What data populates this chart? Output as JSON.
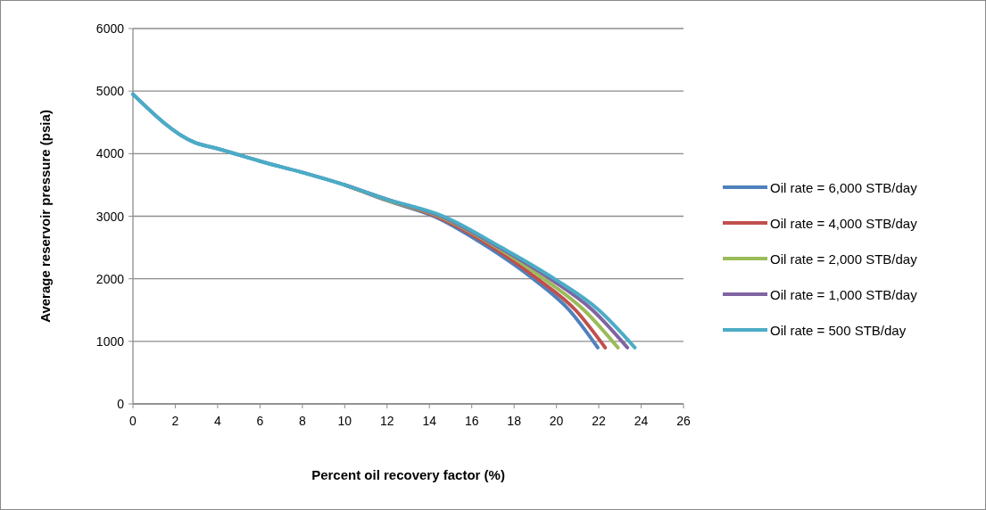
{
  "chart_data": {
    "type": "line",
    "xlabel": "Percent oil recovery factor (%)",
    "ylabel": "Average reservoir pressure (psia)",
    "xlim": [
      0,
      26
    ],
    "xticks": [
      0,
      2,
      4,
      6,
      8,
      10,
      12,
      14,
      16,
      18,
      20,
      22,
      24,
      26
    ],
    "ylim": [
      0,
      6000
    ],
    "yticks": [
      0,
      1000,
      2000,
      3000,
      4000,
      5000,
      6000
    ],
    "grid": "y",
    "legend": "right",
    "marker": "none",
    "line_style": "solid",
    "series": [
      {
        "name": "Oil rate = 6,000 STB/day",
        "color": "#4f81bd",
        "x": [
          0,
          2.9,
          4,
          6,
          8,
          10,
          12,
          14.2,
          16.8,
          18.9,
          20.6,
          21.95
        ],
        "values": [
          4950,
          4180,
          4080,
          3880,
          3700,
          3500,
          3250,
          3000,
          2500,
          2000,
          1500,
          900
        ]
      },
      {
        "name": "Oil rate = 4,000 STB/day",
        "color": "#c0504d",
        "x": [
          10,
          12,
          14.3,
          17.0,
          19.1,
          20.9,
          22.3
        ],
        "values": [
          3500,
          3260,
          3000,
          2500,
          2000,
          1500,
          900
        ]
      },
      {
        "name": "Oil rate = 2,000 STB/day",
        "color": "#9bbb59",
        "x": [
          10,
          12,
          14.45,
          17.2,
          19.4,
          21.3,
          22.9
        ],
        "values": [
          3500,
          3260,
          3000,
          2500,
          2000,
          1500,
          900
        ]
      },
      {
        "name": "Oil rate = 1,000 STB/day",
        "color": "#8064a2",
        "x": [
          10,
          12,
          14.55,
          17.3,
          19.7,
          21.7,
          23.35
        ],
        "values": [
          3500,
          3270,
          3000,
          2500,
          2000,
          1500,
          900
        ]
      },
      {
        "name": "Oil rate = 500 STB/day",
        "color": "#4bacc6",
        "x": [
          0,
          2.9,
          4,
          6,
          8,
          10,
          12,
          14.65,
          17.4,
          19.9,
          22.0,
          23.7
        ],
        "values": [
          4950,
          4180,
          4080,
          3880,
          3700,
          3500,
          3270,
          3000,
          2500,
          2000,
          1500,
          900
        ]
      }
    ]
  }
}
